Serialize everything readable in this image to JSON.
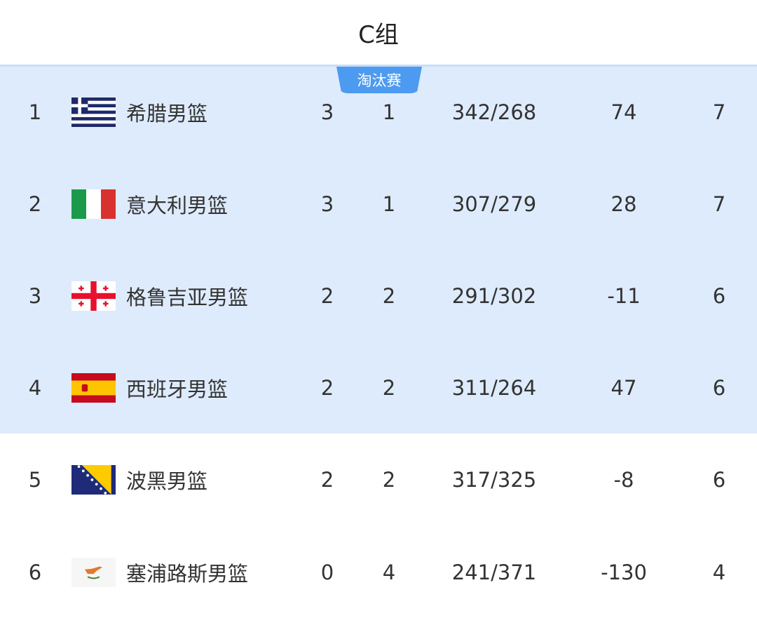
{
  "header": {
    "title": "C组"
  },
  "badge": {
    "label": "淘汰赛",
    "color": "#4d9bf0"
  },
  "highlight_color": "#deebfc",
  "rows": [
    {
      "rank": "1",
      "flag": "greece-flag",
      "team": "希腊男篮",
      "wins": "3",
      "losses": "1",
      "score": "342/268",
      "diff": "74",
      "points": "7",
      "qualified": true
    },
    {
      "rank": "2",
      "flag": "italy-flag",
      "team": "意大利男篮",
      "wins": "3",
      "losses": "1",
      "score": "307/279",
      "diff": "28",
      "points": "7",
      "qualified": true
    },
    {
      "rank": "3",
      "flag": "georgia-flag",
      "team": "格鲁吉亚男篮",
      "wins": "2",
      "losses": "2",
      "score": "291/302",
      "diff": "-11",
      "points": "6",
      "qualified": true
    },
    {
      "rank": "4",
      "flag": "spain-flag",
      "team": "西班牙男篮",
      "wins": "2",
      "losses": "2",
      "score": "311/264",
      "diff": "47",
      "points": "6",
      "qualified": true
    },
    {
      "rank": "5",
      "flag": "bosnia-flag",
      "team": "波黑男篮",
      "wins": "2",
      "losses": "2",
      "score": "317/325",
      "diff": "-8",
      "points": "6",
      "qualified": false
    },
    {
      "rank": "6",
      "flag": "cyprus-flag",
      "team": "塞浦路斯男篮",
      "wins": "0",
      "losses": "4",
      "score": "241/371",
      "diff": "-130",
      "points": "4",
      "qualified": false
    }
  ]
}
